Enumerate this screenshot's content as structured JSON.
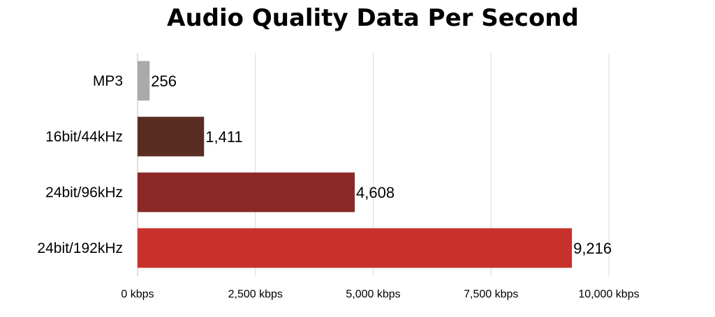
{
  "chart_data": {
    "type": "bar",
    "orientation": "horizontal",
    "title": "Audio Quality Data Per Second",
    "xlabel": "",
    "ylabel": "",
    "categories": [
      "MP3",
      "16bit/44kHz",
      "24bit/96kHz",
      "24bit/192kHz"
    ],
    "values": [
      256,
      1411,
      4608,
      9216
    ],
    "data_labels": [
      "256",
      "1,411",
      "4,608",
      "9,216"
    ],
    "bar_colors": [
      "#aaaaaa",
      "#5a2d22",
      "#8b2828",
      "#c8302b"
    ],
    "xlim": [
      0,
      10000
    ],
    "x_ticks": [
      0,
      2500,
      5000,
      7500,
      10000
    ],
    "x_tick_labels": [
      "0 kbps",
      "2,500 kbps",
      "5,000 kbps",
      "7,500 kbps",
      "10,000 kbps"
    ],
    "grid": "vertical",
    "legend": "none"
  }
}
